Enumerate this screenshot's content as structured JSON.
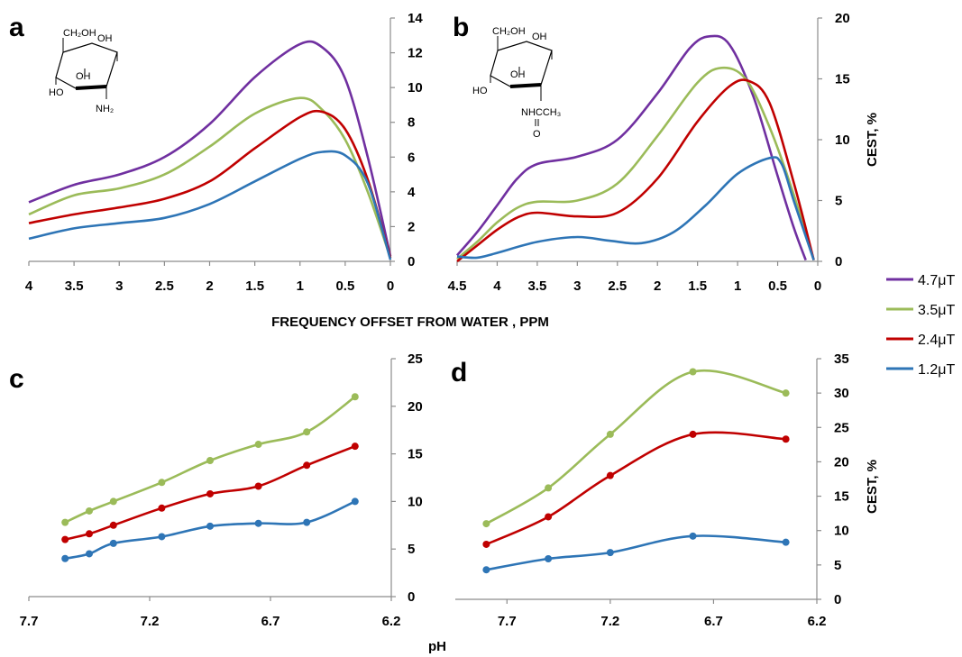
{
  "chart_data": [
    {
      "panel": "a",
      "type": "line",
      "xlim": [
        4,
        0
      ],
      "xticks": [
        "4",
        "3.5",
        "3",
        "2.5",
        "2",
        "1.5",
        "1",
        "0.5",
        "0"
      ],
      "ylim": [
        0,
        14
      ],
      "yticks": [
        "0",
        "2",
        "4",
        "6",
        "8",
        "10",
        "12",
        "14"
      ],
      "y_axis_side": "right",
      "structure_labels": [
        "CH₂OH",
        "OH",
        "OH",
        "HO",
        "NH₂"
      ],
      "series": [
        {
          "name": "4.7μT",
          "color": "#7030a0",
          "x": [
            4,
            3.5,
            3,
            2.5,
            2,
            1.5,
            1,
            0.75,
            0.5,
            0.25,
            0
          ],
          "y": [
            3.4,
            4.4,
            5.0,
            6.0,
            7.9,
            10.6,
            12.5,
            12.3,
            10.5,
            6.0,
            0.3
          ]
        },
        {
          "name": "3.5μT",
          "color": "#9bbb59",
          "x": [
            4,
            3.5,
            3,
            2.5,
            2,
            1.5,
            1,
            0.75,
            0.5,
            0.25,
            0
          ],
          "y": [
            2.7,
            3.8,
            4.2,
            5.0,
            6.6,
            8.5,
            9.4,
            8.7,
            7.0,
            4.0,
            0.2
          ]
        },
        {
          "name": "2.4μT",
          "color": "#c00000",
          "x": [
            4,
            3.5,
            3,
            2.5,
            2,
            1.5,
            1,
            0.75,
            0.5,
            0.25,
            0
          ],
          "y": [
            2.2,
            2.7,
            3.1,
            3.6,
            4.6,
            6.5,
            8.3,
            8.6,
            7.6,
            4.7,
            0.2
          ]
        },
        {
          "name": "1.2μT",
          "color": "#2e75b6",
          "x": [
            4,
            3.5,
            3,
            2.5,
            2,
            1.5,
            1,
            0.75,
            0.5,
            0.25,
            0
          ],
          "y": [
            1.3,
            1.9,
            2.2,
            2.5,
            3.3,
            4.6,
            5.9,
            6.3,
            6.1,
            4.5,
            0.1
          ]
        }
      ]
    },
    {
      "panel": "b",
      "type": "line",
      "xlim": [
        4.5,
        0
      ],
      "xticks": [
        "4.5",
        "4",
        "3.5",
        "3",
        "2.5",
        "2",
        "1.5",
        "1",
        "0.5",
        "0"
      ],
      "ylim": [
        0,
        20
      ],
      "yticks": [
        "0",
        "5",
        "10",
        "15",
        "20"
      ],
      "ylabel": "CEST, %",
      "y_axis_side": "right",
      "structure_labels": [
        "CH₂OH",
        "OH",
        "OH",
        "HO",
        "NHCCH₃",
        "O"
      ],
      "series": [
        {
          "name": "4.7μT",
          "color": "#7030a0",
          "x": [
            4.5,
            4.25,
            4,
            3.75,
            3.5,
            3,
            2.5,
            2,
            1.6,
            1.35,
            1.1,
            0.8,
            0.5,
            0.3,
            0.15
          ],
          "y": [
            0.5,
            2.4,
            4.6,
            6.8,
            8.0,
            8.6,
            10.0,
            13.8,
            17.5,
            18.5,
            17.8,
            13.5,
            7.0,
            2.8,
            0.1
          ]
        },
        {
          "name": "3.5μT",
          "color": "#9bbb59",
          "x": [
            4.5,
            4.25,
            4,
            3.75,
            3.5,
            3,
            2.5,
            2,
            1.5,
            1.2,
            0.9,
            0.6,
            0.3,
            0.05
          ],
          "y": [
            0.2,
            1.6,
            3.2,
            4.4,
            4.9,
            5.0,
            6.4,
            10.3,
            14.7,
            15.9,
            15.0,
            11.0,
            5.5,
            0.1
          ]
        },
        {
          "name": "2.4μT",
          "color": "#c00000",
          "x": [
            4.5,
            4.25,
            4,
            3.75,
            3.5,
            3,
            2.5,
            2,
            1.5,
            1.1,
            0.85,
            0.6,
            0.3,
            0.05
          ],
          "y": [
            0.0,
            1.3,
            2.6,
            3.6,
            4.0,
            3.7,
            4.0,
            6.8,
            11.5,
            14.4,
            14.8,
            13.0,
            6.5,
            0.1
          ]
        },
        {
          "name": "1.2μT",
          "color": "#2e75b6",
          "x": [
            4.5,
            4.25,
            4,
            3.5,
            3,
            2.6,
            2.2,
            1.8,
            1.4,
            1,
            0.6,
            0.45,
            0.3,
            0.05
          ],
          "y": [
            0.4,
            0.3,
            0.7,
            1.6,
            2.0,
            1.7,
            1.5,
            2.4,
            4.6,
            7.2,
            8.5,
            8.0,
            5.0,
            0.1
          ]
        }
      ]
    },
    {
      "panel": "c",
      "type": "line",
      "xlim": [
        7.7,
        6.2
      ],
      "xticks": [
        "7.7",
        "7.2",
        "6.7",
        "6.2"
      ],
      "ylim": [
        0,
        25
      ],
      "yticks": [
        "0",
        "5",
        "10",
        "15",
        "20",
        "25"
      ],
      "y_axis_side": "right",
      "markers": true,
      "series": [
        {
          "name": "3.5μT",
          "color": "#9bbb59",
          "x": [
            7.55,
            7.45,
            7.35,
            7.15,
            6.95,
            6.75,
            6.55,
            6.35
          ],
          "y": [
            7.8,
            9.0,
            10.0,
            12.0,
            14.3,
            16.0,
            17.3,
            21.0
          ]
        },
        {
          "name": "2.4μT",
          "color": "#c00000",
          "x": [
            7.55,
            7.45,
            7.35,
            7.15,
            6.95,
            6.75,
            6.55,
            6.35
          ],
          "y": [
            6.0,
            6.6,
            7.5,
            9.3,
            10.8,
            11.6,
            13.8,
            15.8
          ]
        },
        {
          "name": "1.2μT",
          "color": "#2e75b6",
          "x": [
            7.55,
            7.45,
            7.35,
            7.15,
            6.95,
            6.75,
            6.55,
            6.35
          ],
          "y": [
            4.0,
            4.5,
            5.6,
            6.3,
            7.4,
            7.7,
            7.8,
            10.0
          ]
        }
      ]
    },
    {
      "panel": "d",
      "type": "line",
      "xlim": [
        7.95,
        6.2
      ],
      "xticks": [
        "7.7",
        "7.2",
        "6.7",
        "6.2"
      ],
      "ylim": [
        0,
        35
      ],
      "yticks": [
        "0",
        "5",
        "10",
        "15",
        "20",
        "25",
        "30",
        "35"
      ],
      "ylabel": "CEST, %",
      "y_axis_side": "right",
      "markers": true,
      "series": [
        {
          "name": "3.5μT",
          "color": "#9bbb59",
          "x": [
            7.8,
            7.5,
            7.2,
            6.8,
            6.35
          ],
          "y": [
            11.0,
            16.2,
            24.0,
            33.1,
            30.0
          ]
        },
        {
          "name": "2.4μT",
          "color": "#c00000",
          "x": [
            7.8,
            7.5,
            7.2,
            6.8,
            6.35
          ],
          "y": [
            8.0,
            12.0,
            18.0,
            24.0,
            23.3
          ]
        },
        {
          "name": "1.2μT",
          "color": "#2e75b6",
          "x": [
            7.8,
            7.5,
            7.2,
            6.8,
            6.35
          ],
          "y": [
            4.3,
            5.9,
            6.8,
            9.2,
            8.3
          ]
        }
      ]
    }
  ],
  "figure": {
    "panel_letters": [
      "a",
      "b",
      "c",
      "d"
    ],
    "top_xlabel": "FREQUENCY OFFSET FROM WATER , PPM",
    "bottom_xlabel": "pH"
  },
  "legend": {
    "placement": "right",
    "items": [
      {
        "label": "4.7μT",
        "color": "#7030a0"
      },
      {
        "label": "3.5μT",
        "color": "#9bbb59"
      },
      {
        "label": "2.4μT",
        "color": "#c00000"
      },
      {
        "label": "1.2μT",
        "color": "#2e75b6"
      }
    ]
  }
}
